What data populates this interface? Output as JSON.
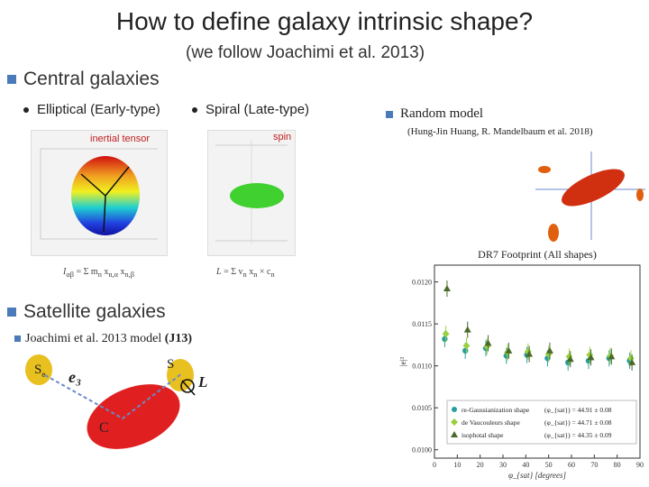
{
  "slide": {
    "title": "How to define galaxy intrinsic shape?",
    "subtitle": "(we follow Joachimi et al. 2013)"
  },
  "central": {
    "heading": "Central galaxies",
    "elliptical": "Elliptical (Early-type)",
    "spiral": "Spiral (Late-type)",
    "inertial_label": "inertial tensor",
    "spin_label": "spin"
  },
  "random": {
    "heading": "Random model",
    "citation": "(Hung-Jin Huang, R. Mandelbaum et al. 2018)"
  },
  "satellite": {
    "heading": "Satellite galaxies",
    "model": "Joachimi et al. 2013 model",
    "model_tag": "(J13)",
    "label_s1": "S",
    "label_s1_sub": "e",
    "label_s2": "S",
    "label_e3": "e₃",
    "label_L": "L",
    "label_C": "C"
  },
  "chart_data": {
    "type": "scatter",
    "title": "DR7 Footprint (All shapes)",
    "xlabel": "φ_{sat} [degrees]",
    "ylabel": "|e|²",
    "xlim": [
      0,
      90
    ],
    "ylim": [
      0.0099,
      0.0122
    ],
    "x_ticks": [
      "0",
      "10",
      "20",
      "30",
      "40",
      "50",
      "60",
      "70",
      "80",
      "90"
    ],
    "y_ticks": [
      "0.0100",
      "0.0105",
      "0.0110",
      "0.0115",
      "0.0120"
    ],
    "series": [
      {
        "name": "re-Gaussianization shape",
        "stat": "(φ_{sat}) = 44.91 ± 0.08",
        "color": "#2a9d9d",
        "x": [
          4.5,
          13.5,
          22.5,
          31.5,
          40.5,
          49.5,
          58.5,
          67.5,
          76.5,
          85.5
        ],
        "y": [
          0.01132,
          0.01118,
          0.01121,
          0.01112,
          0.01113,
          0.01109,
          0.01104,
          0.01106,
          0.01109,
          0.01106
        ]
      },
      {
        "name": "de Vaucouleurs shape",
        "stat": "(φ_{sat}) = 44.71 ± 0.08",
        "color": "#9ad040",
        "x": [
          5.0,
          14.0,
          23.0,
          32.0,
          41.0,
          50.0,
          59.0,
          68.0,
          77.0,
          86.0
        ],
        "y": [
          0.01138,
          0.01124,
          0.01123,
          0.01116,
          0.01117,
          0.01114,
          0.01111,
          0.01113,
          0.01112,
          0.01109
        ]
      },
      {
        "name": "isophotal shape",
        "stat": "(φ_{sat}) = 44.35 ± 0.09",
        "color": "#4a6a2a",
        "x": [
          5.5,
          14.5,
          23.5,
          32.5,
          41.5,
          50.5,
          59.5,
          68.5,
          77.5,
          86.5
        ],
        "y": [
          0.01192,
          0.01143,
          0.01127,
          0.01118,
          0.01114,
          0.01118,
          0.01108,
          0.0111,
          0.01111,
          0.01104
        ]
      }
    ],
    "legend": "bottom"
  },
  "colors": {
    "accent": "#4a7ab8",
    "ellipse_red": "#e02020"
  }
}
